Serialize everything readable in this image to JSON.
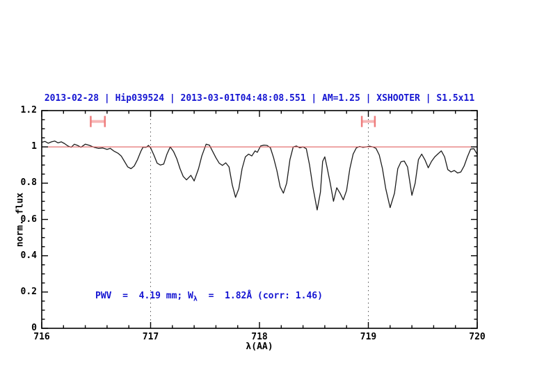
{
  "title": {
    "text": "2013-02-28 | Hip039524 | 2013-03-01T04:48:08.551 | AM=1.25 | XSHOOTER | S1.5x11"
  },
  "annotation": {
    "part1": "PWV  =  4.19 mm; W",
    "sub": "λ",
    "part2": "  =  1.82Å (corr: 1.46)"
  },
  "colors": {
    "text_blue": "#1414d2",
    "continuum_red": "#e06060",
    "marker_red": "#ee7d7d",
    "marker_bar_pink": "#f6b6b6",
    "spectrum_black": "#1c1c1c",
    "dotted_gray": "#555555",
    "frame_black": "#000000"
  },
  "chart_data": {
    "type": "line",
    "title": "2013-02-28 | Hip039524 | 2013-03-01T04:48:08.551 | AM=1.25 | XSHOOTER | S1.5x11",
    "xlabel": "λ(AA)",
    "ylabel": "norm. flux",
    "xlim": [
      716,
      720
    ],
    "ylim": [
      0,
      1.2
    ],
    "grid": false,
    "xticks": {
      "values": [
        716,
        717,
        718,
        719,
        720
      ],
      "labels": [
        "716",
        "717",
        "718",
        "719",
        "720"
      ],
      "minor_step": 0.2
    },
    "yticks": {
      "values": [
        0,
        0.2,
        0.4,
        0.6,
        0.8,
        1,
        1.2
      ],
      "labels": [
        "0",
        "0.2",
        "0.4",
        "0.6",
        "0.8",
        "1",
        "1.2"
      ],
      "minor_step": 0.05
    },
    "dotted_vlines": [
      717,
      719
    ],
    "continuum_line_y": 1.0,
    "range_markers": [
      {
        "x_min": 716.45,
        "x_max": 716.58,
        "y": 1.14
      },
      {
        "x_min": 718.94,
        "x_max": 719.06,
        "y": 1.14
      }
    ],
    "series": [
      {
        "name": "telluric spectrum",
        "x": [
          716.0,
          716.03,
          716.06,
          716.09,
          716.12,
          716.15,
          716.18,
          716.21,
          716.24,
          716.27,
          716.3,
          716.33,
          716.36,
          716.4,
          716.44,
          716.48,
          716.52,
          716.56,
          716.6,
          716.63,
          716.66,
          716.7,
          716.73,
          716.76,
          716.79,
          716.82,
          716.85,
          716.88,
          716.91,
          716.93,
          716.96,
          716.98,
          717.0,
          717.03,
          717.06,
          717.09,
          717.12,
          717.15,
          717.18,
          717.21,
          717.24,
          717.27,
          717.3,
          717.33,
          717.37,
          717.4,
          717.44,
          717.47,
          717.51,
          717.54,
          717.57,
          717.6,
          717.63,
          717.66,
          717.69,
          717.72,
          717.75,
          717.78,
          717.81,
          717.84,
          717.87,
          717.9,
          717.93,
          717.96,
          717.98,
          718.01,
          718.04,
          718.07,
          718.1,
          718.13,
          718.16,
          718.19,
          718.22,
          718.25,
          718.28,
          718.31,
          718.34,
          718.37,
          718.4,
          718.43,
          718.46,
          718.49,
          718.53,
          718.56,
          718.58,
          718.6,
          718.62,
          718.65,
          718.68,
          718.71,
          718.74,
          718.77,
          718.8,
          718.83,
          718.86,
          718.89,
          718.92,
          718.95,
          718.98,
          719.01,
          719.04,
          719.07,
          719.1,
          719.13,
          719.16,
          719.2,
          719.24,
          719.27,
          719.3,
          719.33,
          719.36,
          719.4,
          719.43,
          719.46,
          719.49,
          719.52,
          719.55,
          719.58,
          719.61,
          719.64,
          719.67,
          719.7,
          719.73,
          719.76,
          719.79,
          719.82,
          719.85,
          719.88,
          719.91,
          719.94,
          719.97,
          720.0
        ],
        "y": [
          1.025,
          1.03,
          1.02,
          1.028,
          1.032,
          1.022,
          1.028,
          1.018,
          1.005,
          0.998,
          1.015,
          1.008,
          0.998,
          1.015,
          1.008,
          0.998,
          0.992,
          0.994,
          0.986,
          0.992,
          0.978,
          0.965,
          0.95,
          0.92,
          0.89,
          0.88,
          0.895,
          0.93,
          0.975,
          0.998,
          0.998,
          1.008,
          0.995,
          0.955,
          0.91,
          0.9,
          0.905,
          0.96,
          1.0,
          0.975,
          0.935,
          0.88,
          0.837,
          0.818,
          0.843,
          0.812,
          0.88,
          0.95,
          1.015,
          1.01,
          0.975,
          0.94,
          0.91,
          0.898,
          0.912,
          0.89,
          0.79,
          0.722,
          0.77,
          0.88,
          0.945,
          0.96,
          0.95,
          0.978,
          0.97,
          1.005,
          1.01,
          1.008,
          0.995,
          0.94,
          0.87,
          0.78,
          0.745,
          0.8,
          0.93,
          1.0,
          1.005,
          0.995,
          1.0,
          0.99,
          0.9,
          0.78,
          0.652,
          0.75,
          0.92,
          0.945,
          0.89,
          0.8,
          0.7,
          0.775,
          0.745,
          0.708,
          0.76,
          0.88,
          0.96,
          0.995,
          1.002,
          0.997,
          1.0,
          1.004,
          1.0,
          0.992,
          0.955,
          0.88,
          0.77,
          0.665,
          0.745,
          0.88,
          0.918,
          0.922,
          0.89,
          0.733,
          0.8,
          0.93,
          0.96,
          0.928,
          0.885,
          0.92,
          0.945,
          0.962,
          0.978,
          0.945,
          0.875,
          0.862,
          0.87,
          0.856,
          0.862,
          0.895,
          0.945,
          0.988,
          0.99,
          0.958
        ]
      }
    ]
  }
}
